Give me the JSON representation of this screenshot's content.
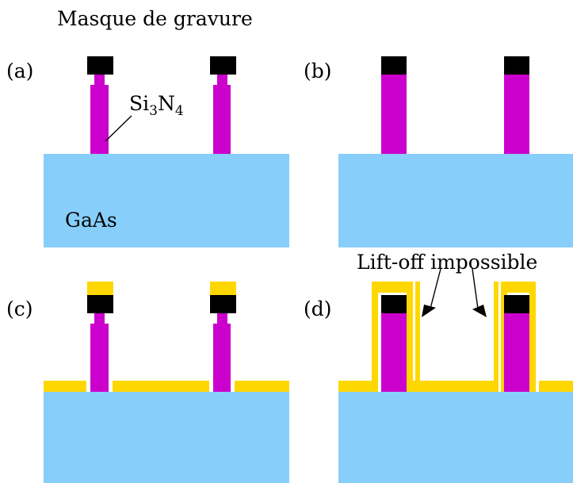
{
  "colors": {
    "substrate": "#87CEFA",
    "nitride": "#CC00CC",
    "mask": "#000000",
    "metal": "#FFD700",
    "arrow": "#000000"
  },
  "labels": {
    "mask": "Masque de gravure",
    "nitride_base": "Si",
    "nitride_sub3": "3",
    "nitride_n": "N",
    "nitride_sub4": "4",
    "substrate": "GaAs",
    "liftoff": "Lift-off impossible"
  },
  "panels": {
    "a": "(a)",
    "b": "(b)",
    "c": "(c)",
    "d": "(d)"
  }
}
